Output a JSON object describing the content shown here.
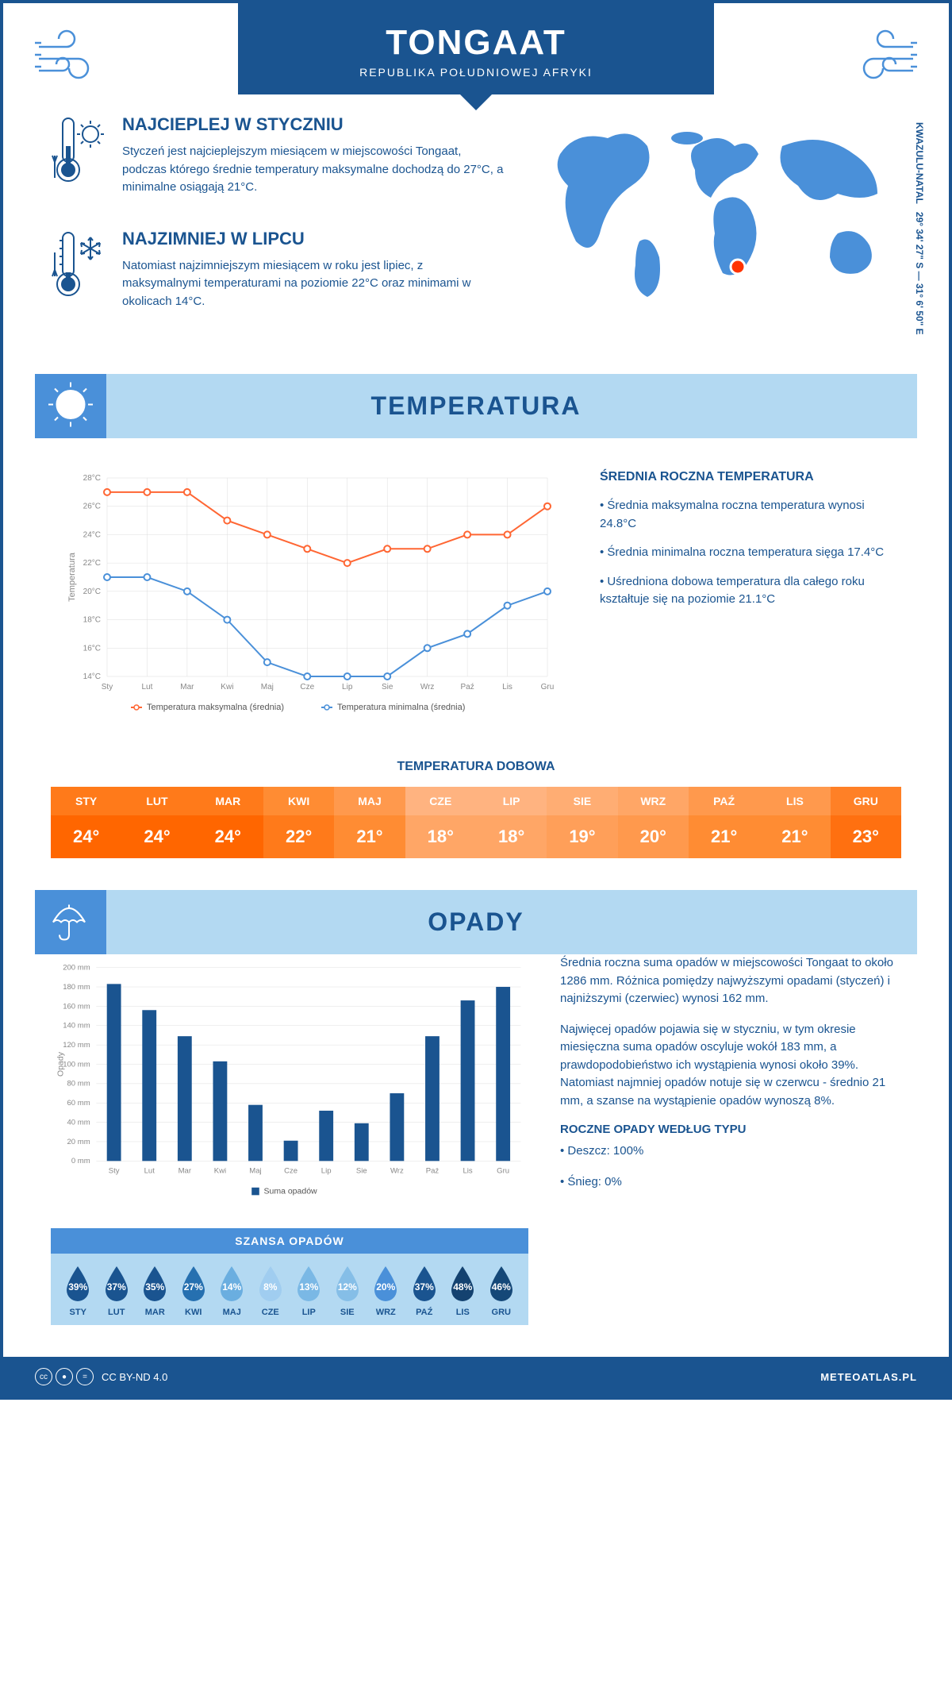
{
  "header": {
    "title": "TONGAAT",
    "subtitle": "REPUBLIKA POŁUDNIOWEJ AFRYKI"
  },
  "coords": "29° 34' 27\" S — 31° 6' 50\" E",
  "region": "KWAZULU-NATAL",
  "hottest": {
    "title": "NAJCIEPLEJ W STYCZNIU",
    "text": "Styczeń jest najcieplejszym miesiącem w miejscowości Tongaat, podczas którego średnie temperatury maksymalne dochodzą do 27°C, a minimalne osiągają 21°C."
  },
  "coldest": {
    "title": "NAJZIMNIEJ W LIPCU",
    "text": "Natomiast najzimniejszym miesiącem w roku jest lipiec, z maksymalnymi temperaturami na poziomie 22°C oraz minimami w okolicach 14°C."
  },
  "temperature_section": {
    "title": "TEMPERATURA",
    "chart": {
      "type": "line",
      "months": [
        "Sty",
        "Lut",
        "Mar",
        "Kwi",
        "Maj",
        "Cze",
        "Lip",
        "Sie",
        "Wrz",
        "Paź",
        "Lis",
        "Gru"
      ],
      "max_series": {
        "label": "Temperatura maksymalna (średnia)",
        "color": "#ff6633",
        "values": [
          27,
          27,
          27,
          25,
          24,
          23,
          22,
          23,
          23,
          24,
          24,
          26
        ]
      },
      "min_series": {
        "label": "Temperatura minimalna (średnia)",
        "color": "#4a90d9",
        "values": [
          21,
          21,
          20,
          18,
          15,
          14,
          14,
          14,
          16,
          17,
          19,
          20
        ]
      },
      "ylim": [
        14,
        28
      ],
      "ytick_step": 2,
      "ylabel": "Temperatura",
      "grid_color": "#dddddd",
      "background": "#ffffff",
      "line_width": 2,
      "marker": "circle",
      "marker_size": 4
    },
    "info_title": "ŚREDNIA ROCZNA TEMPERATURA",
    "info_bullets": [
      "• Średnia maksymalna roczna temperatura wynosi 24.8°C",
      "• Średnia minimalna roczna temperatura sięga 17.4°C",
      "• Uśredniona dobowa temperatura dla całego roku kształtuje się na poziomie 21.1°C"
    ],
    "daily_title": "TEMPERATURA DOBOWA",
    "daily": {
      "months": [
        "STY",
        "LUT",
        "MAR",
        "KWI",
        "MAJ",
        "CZE",
        "LIP",
        "SIE",
        "WRZ",
        "PAŹ",
        "LIS",
        "GRU"
      ],
      "values": [
        "24°",
        "24°",
        "24°",
        "22°",
        "21°",
        "18°",
        "18°",
        "19°",
        "20°",
        "21°",
        "21°",
        "23°"
      ],
      "header_colors": [
        "#ff7a1a",
        "#ff7a1a",
        "#ff7a1a",
        "#ff8c33",
        "#ff994d",
        "#ffb380",
        "#ffb380",
        "#ffad73",
        "#ffa666",
        "#ff994d",
        "#ff994d",
        "#ff8026"
      ],
      "value_colors": [
        "#ff6600",
        "#ff6600",
        "#ff6600",
        "#ff7a1a",
        "#ff8c33",
        "#ffa666",
        "#ffa666",
        "#ff9f59",
        "#ff994d",
        "#ff8c33",
        "#ff8c33",
        "#ff7010"
      ]
    }
  },
  "precipitation_section": {
    "title": "OPADY",
    "chart": {
      "type": "bar",
      "months": [
        "Sty",
        "Lut",
        "Mar",
        "Kwi",
        "Maj",
        "Cze",
        "Lip",
        "Sie",
        "Wrz",
        "Paź",
        "Lis",
        "Gru"
      ],
      "values": [
        183,
        156,
        129,
        103,
        58,
        21,
        52,
        39,
        70,
        129,
        166,
        180
      ],
      "bar_color": "#1a5490",
      "legend_label": "Suma opadów",
      "ylabel": "Opady",
      "ylim": [
        0,
        200
      ],
      "ytick_step": 20,
      "y_unit": " mm",
      "grid_color": "#dddddd",
      "bar_width": 0.4
    },
    "info_p1": "Średnia roczna suma opadów w miejscowości Tongaat to około 1286 mm. Różnica pomiędzy najwyższymi opadami (styczeń) i najniższymi (czerwiec) wynosi 162 mm.",
    "info_p2": "Najwięcej opadów pojawia się w styczniu, w tym okresie miesięczna suma opadów oscyluje wokół 183 mm, a prawdopodobieństwo ich wystąpienia wynosi około 39%. Natomiast najmniej opadów notuje się w czerwcu - średnio 21 mm, a szanse na wystąpienie opadów wynoszą 8%.",
    "chance_title": "SZANSA OPADÓW",
    "chance": {
      "months": [
        "STY",
        "LUT",
        "MAR",
        "KWI",
        "MAJ",
        "CZE",
        "LIP",
        "SIE",
        "WRZ",
        "PAŹ",
        "LIS",
        "GRU"
      ],
      "pct": [
        "39%",
        "37%",
        "35%",
        "27%",
        "14%",
        "8%",
        "13%",
        "12%",
        "20%",
        "37%",
        "48%",
        "46%"
      ],
      "colors": [
        "#1a5490",
        "#1a5490",
        "#1a5490",
        "#2670b0",
        "#6aaee0",
        "#a0cdf0",
        "#7ab8e5",
        "#85bee7",
        "#4a90d9",
        "#1a5490",
        "#144270",
        "#154878"
      ]
    },
    "by_type_title": "ROCZNE OPADY WEDŁUG TYPU",
    "by_type": [
      "• Deszcz: 100%",
      "• Śnieg: 0%"
    ]
  },
  "footer": {
    "license": "CC BY-ND 4.0",
    "site": "METEOATLAS.PL"
  }
}
